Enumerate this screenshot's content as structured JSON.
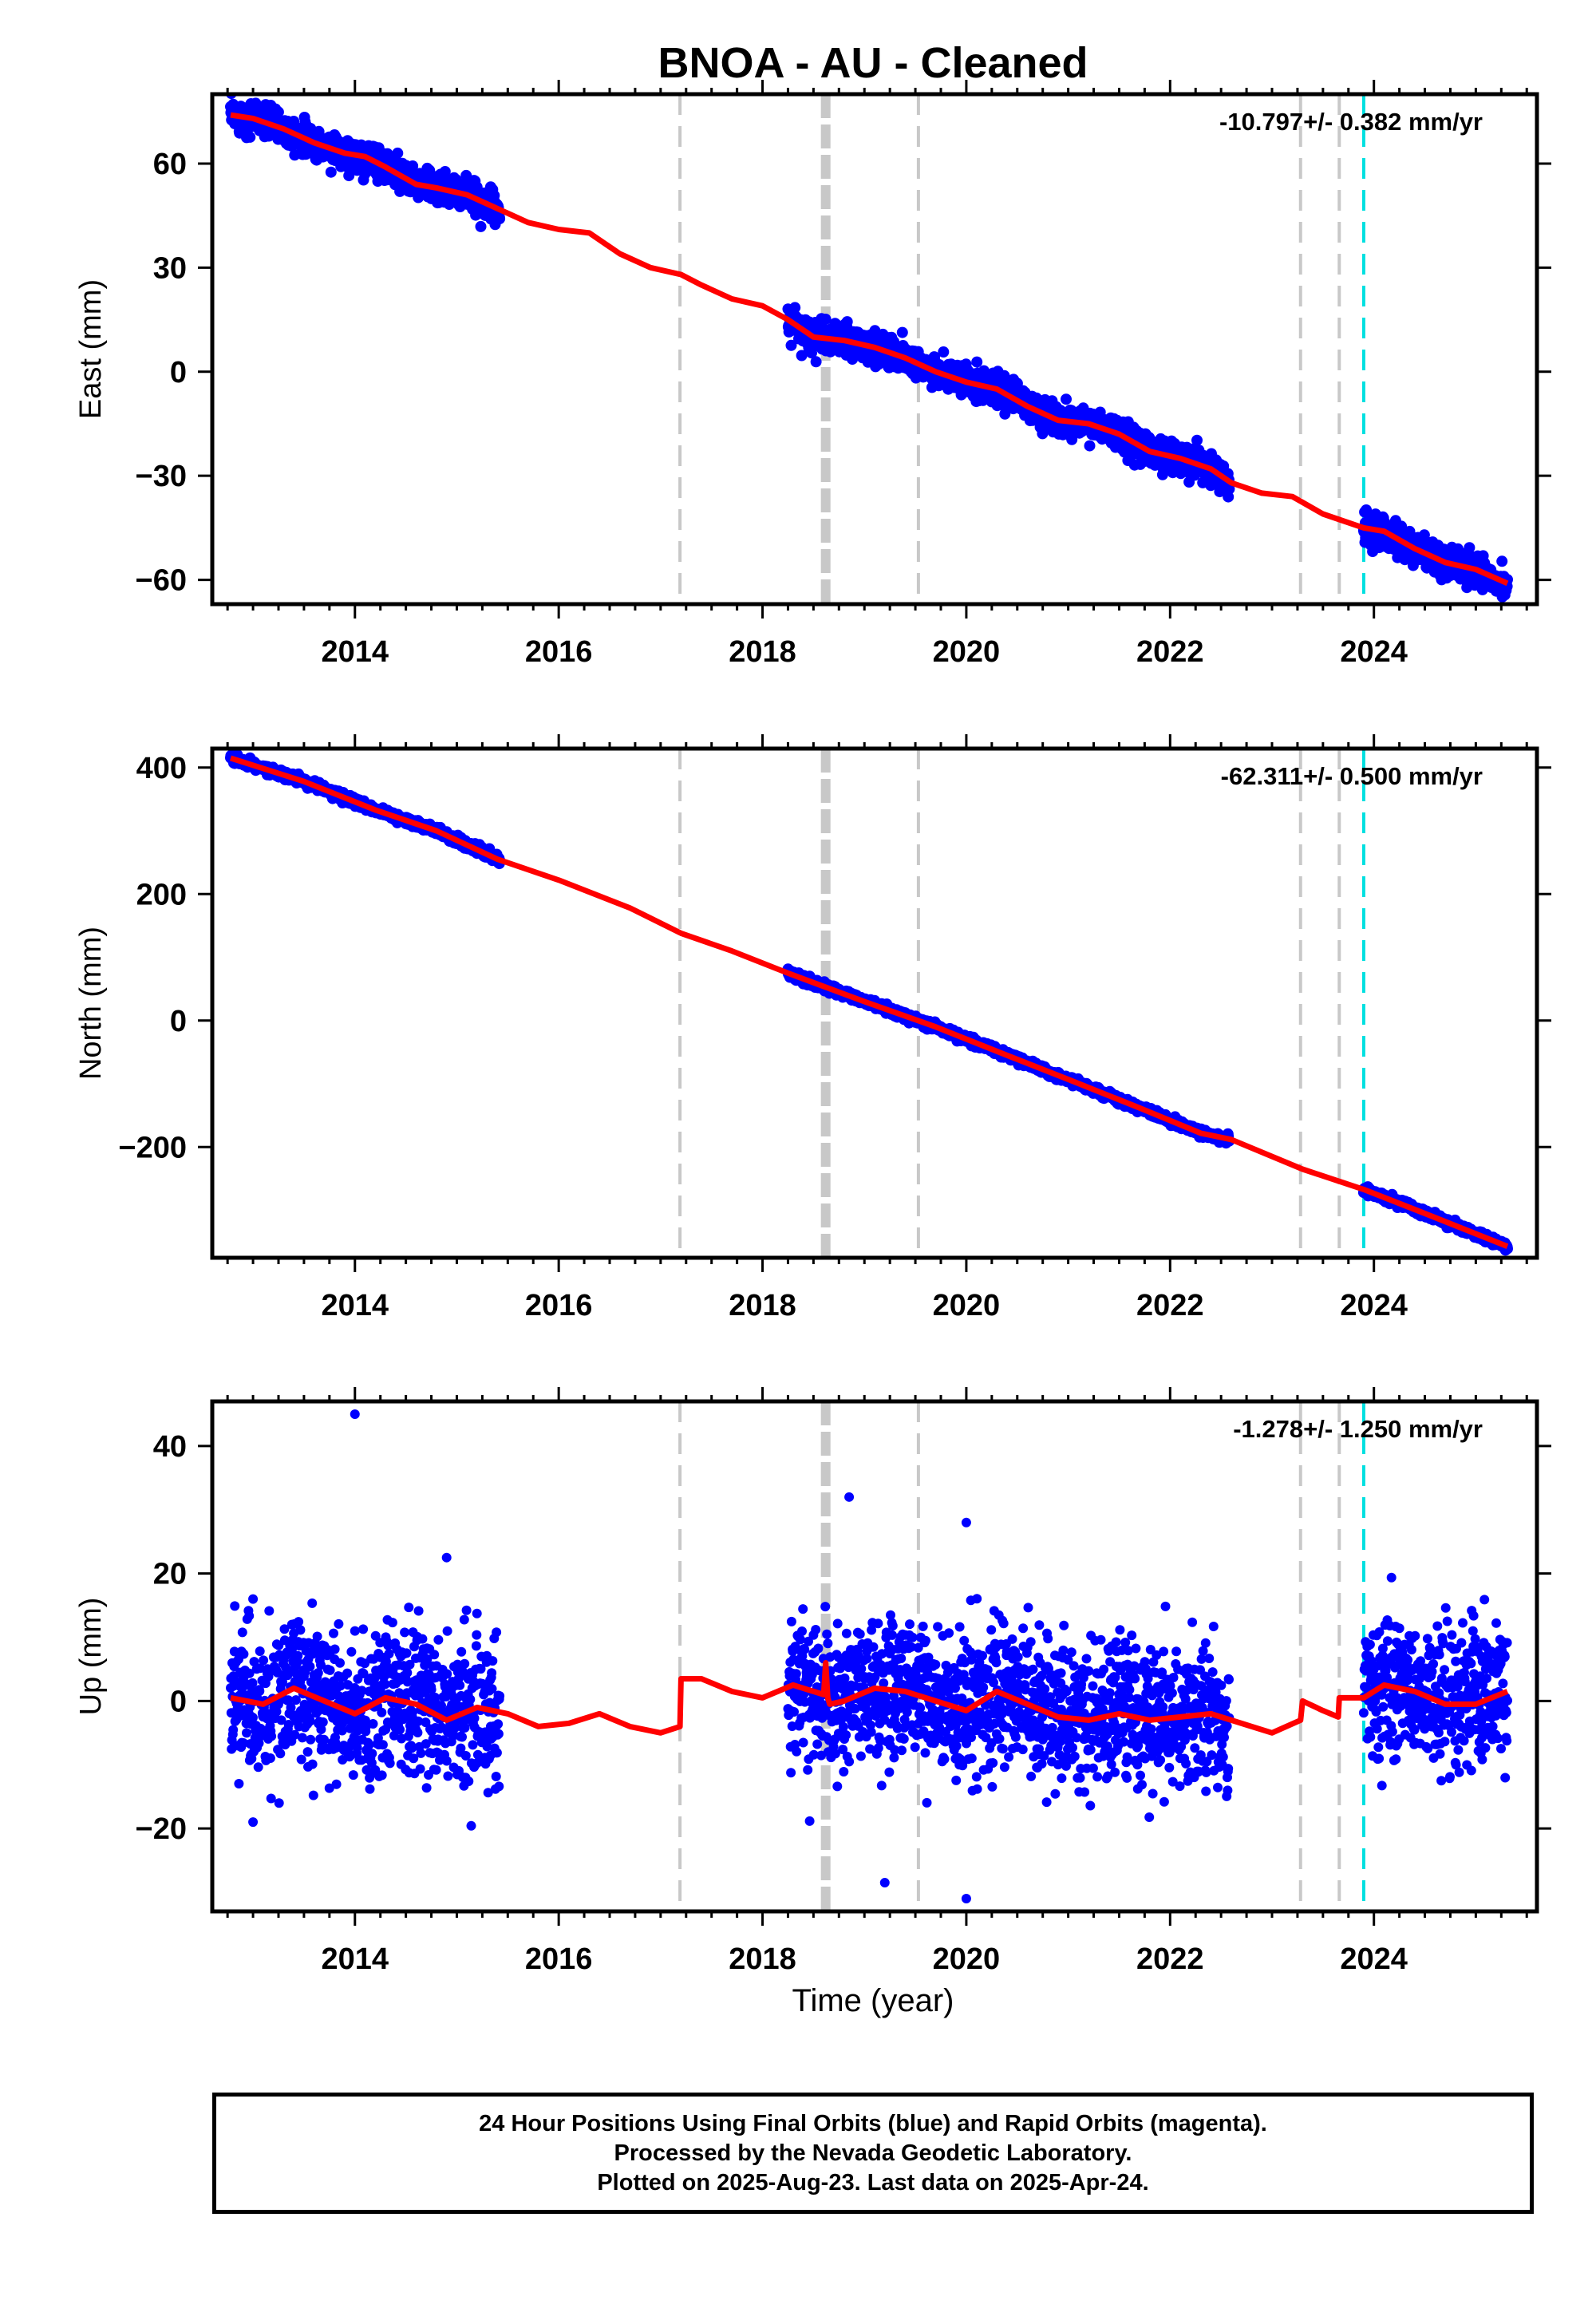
{
  "title": "BNOA  - AU - Cleaned",
  "x_label": "Time (year)",
  "footer": {
    "line1": "24 Hour Positions Using Final Orbits (blue) and Rapid Orbits (magenta).",
    "line2": "Processed by the Nevada Geodetic Laboratory.",
    "line3": "Plotted on 2025-Aug-23. Last data on 2025-Apr-24."
  },
  "colors": {
    "data_points": "#0000ff",
    "model_fit": "#ff0000",
    "equipment_change": "#c8c8c8",
    "earthquake": "#00e0e0"
  },
  "chart_data": [
    {
      "type": "scatter",
      "component": "East",
      "ylabel": "East (mm)",
      "rate_label": "-10.797+/- 0.382 mm/yr",
      "xlim": [
        2012.6,
        2025.6
      ],
      "ylim": [
        -67,
        80
      ],
      "xticks": [
        2014,
        2016,
        2018,
        2020,
        2022,
        2024
      ],
      "yticks": [
        -60,
        -30,
        0,
        30,
        60
      ],
      "data_segments": [
        [
          2012.78,
          2015.42
        ],
        [
          2018.25,
          2022.58
        ],
        [
          2023.9,
          2025.31
        ]
      ],
      "model_fit": {
        "x": [
          2012.78,
          2013.0,
          2013.3,
          2013.6,
          2013.9,
          2014.1,
          2014.3,
          2014.6,
          2014.8,
          2015.1,
          2015.4,
          2015.7,
          2016.0,
          2016.3,
          2016.6,
          2016.9,
          2017.2,
          2017.4,
          2017.7,
          2018.0,
          2018.25,
          2018.5,
          2018.8,
          2019.1,
          2019.4,
          2019.7,
          2020.0,
          2020.3,
          2020.6,
          2020.9,
          2021.2,
          2021.5,
          2021.8,
          2022.1,
          2022.4,
          2022.6,
          2022.9,
          2023.2,
          2023.5,
          2023.9,
          2024.1,
          2024.4,
          2024.7,
          2025.0,
          2025.31
        ],
        "y": [
          74,
          73,
          70,
          66,
          63,
          62,
          59,
          54,
          53,
          51,
          47,
          43,
          41,
          40,
          34,
          30,
          28,
          25,
          21,
          19,
          15,
          10,
          9,
          7,
          4,
          0,
          -3,
          -5,
          -10,
          -14,
          -15,
          -18,
          -23,
          -25,
          -28,
          -32,
          -35,
          -36,
          -41,
          -45,
          -46,
          -51,
          -55,
          -57,
          -61
        ]
      },
      "outliers": []
    },
    {
      "type": "scatter",
      "component": "North",
      "ylabel": "North (mm)",
      "rate_label": "-62.311+/- 0.500 mm/yr",
      "xlim": [
        2012.6,
        2025.6
      ],
      "ylim": [
        -375,
        430
      ],
      "xticks": [
        2014,
        2016,
        2018,
        2020,
        2022,
        2024
      ],
      "yticks": [
        -200,
        0,
        200,
        400
      ],
      "data_segments": [
        [
          2012.78,
          2015.42
        ],
        [
          2018.25,
          2022.58
        ],
        [
          2023.9,
          2025.31
        ]
      ],
      "model_fit": {
        "x": [
          2012.78,
          2013.5,
          2014.2,
          2014.8,
          2015.4,
          2016.0,
          2016.7,
          2017.2,
          2017.7,
          2018.25,
          2019.0,
          2019.7,
          2020.4,
          2021.0,
          2021.7,
          2022.3,
          2022.6,
          2023.3,
          2023.9,
          2024.5,
          2025.31
        ],
        "y": [
          415,
          378,
          333,
          300,
          255,
          222,
          178,
          138,
          110,
          75,
          30,
          -10,
          -55,
          -93,
          -138,
          -178,
          -188,
          -235,
          -267,
          -305,
          -357
        ]
      },
      "outliers": []
    },
    {
      "type": "scatter",
      "component": "Up",
      "ylabel": "Up (mm)",
      "rate_label": "-1.278+/- 1.250 mm/yr",
      "xlim": [
        2012.6,
        2025.6
      ],
      "ylim": [
        -33,
        47
      ],
      "xticks": [
        2014,
        2016,
        2018,
        2020,
        2022,
        2024
      ],
      "yticks": [
        -20,
        0,
        20,
        40
      ],
      "data_segments": [
        [
          2012.78,
          2015.42
        ],
        [
          2018.25,
          2022.58
        ],
        [
          2023.9,
          2025.31
        ]
      ],
      "model_fit": {
        "x": [
          2012.78,
          2013.1,
          2013.4,
          2013.7,
          2014.0,
          2014.3,
          2014.6,
          2014.9,
          2015.2,
          2015.5,
          2015.8,
          2016.1,
          2016.4,
          2016.7,
          2017.0,
          2017.19,
          2017.2,
          2017.4,
          2017.7,
          2018.0,
          2018.3,
          2018.5,
          2018.6,
          2018.62,
          2018.64,
          2018.66,
          2018.8,
          2019.1,
          2019.4,
          2019.7,
          2020.0,
          2020.3,
          2020.6,
          2020.9,
          2021.2,
          2021.5,
          2021.8,
          2022.1,
          2022.4,
          2022.7,
          2023.0,
          2023.28,
          2023.3,
          2023.5,
          2023.65,
          2023.66,
          2023.9,
          2024.1,
          2024.4,
          2024.7,
          2025.0,
          2025.31
        ],
        "y": [
          0.5,
          -0.5,
          2,
          0,
          -2,
          0.5,
          -0.5,
          -3,
          -1,
          -2,
          -4,
          -3.5,
          -2,
          -4,
          -5,
          -4,
          3.5,
          3.5,
          1.5,
          0.5,
          2.5,
          1.5,
          1,
          6,
          0.5,
          -0.5,
          0,
          2,
          1.5,
          0,
          -1.5,
          1.5,
          -0.5,
          -2.5,
          -3,
          -2,
          -3,
          -2.5,
          -2,
          -3.5,
          -5,
          -3,
          0,
          -1.5,
          -2.5,
          0.5,
          0.5,
          2.5,
          1.5,
          -0.5,
          -0.5,
          1.5
        ]
      },
      "outliers": [
        [
          2014.0,
          45
        ],
        [
          2014.9,
          22.5
        ],
        [
          2018.85,
          32
        ],
        [
          2020.0,
          28
        ],
        [
          2019.2,
          -28.5
        ],
        [
          2020.0,
          -31
        ],
        [
          2013.0,
          -19
        ],
        [
          2013.0,
          16
        ]
      ]
    }
  ],
  "reference_lines": {
    "equipment_changes": [
      2017.19,
      2019.53,
      2023.28,
      2023.66
    ],
    "thick_line": 2018.62,
    "earthquake": 2023.9
  }
}
